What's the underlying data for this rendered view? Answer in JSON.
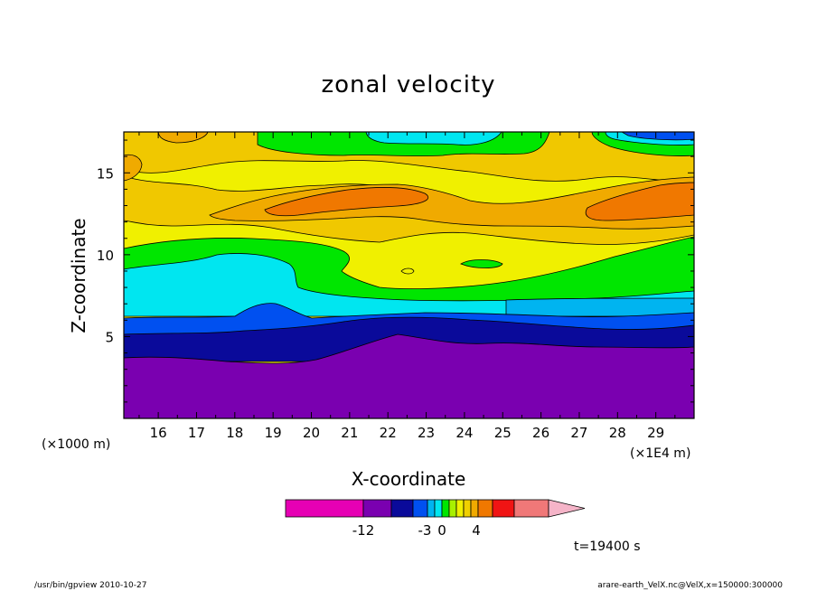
{
  "chart_data": {
    "type": "heatmap",
    "title": "zonal velocity",
    "xlabel": "X-coordinate",
    "ylabel": "Z-coordinate",
    "x_unit_left": "(×1000 m)",
    "x_unit_right": "(×1E4 m)",
    "x_ticks": [
      "16",
      "17",
      "18",
      "19",
      "20",
      "21",
      "22",
      "23",
      "24",
      "25",
      "26",
      "27",
      "28",
      "29"
    ],
    "y_ticks": [
      "5",
      "10",
      "15"
    ],
    "xlim": [
      15.1,
      30.0
    ],
    "ylim": [
      0,
      17.5
    ],
    "time_label": "t=19400 s",
    "legend": {
      "labels": [
        "-12",
        "-3",
        "0",
        "4"
      ],
      "colors": [
        "#e600b4",
        "#7a00b0",
        "#0a0a9a",
        "#0050f0",
        "#00b4f0",
        "#00e6f0",
        "#00e600",
        "#a8f000",
        "#f0f000",
        "#f0d000",
        "#f0aa00",
        "#f07800",
        "#f01414",
        "#f07878",
        "#f5b4c8"
      ]
    },
    "levels_colors": {
      "c_m15": "#7a00b0",
      "c_m12": "#0a0a9a",
      "c_m9": "#0050f0",
      "c_m6": "#00e6f0",
      "c_m3": "#00e600",
      "c_0": "#f0f000",
      "c_2": "#f0c800",
      "c_3": "#f0aa00",
      "c_4": "#f07800"
    },
    "description_regions": [
      {
        "level": "-15 and below",
        "z_range": [
          0,
          4.5
        ]
      },
      {
        "level": "-12",
        "z_range": [
          3.5,
          6.5
        ]
      },
      {
        "level": "-9",
        "z_range": [
          5.5,
          7.5
        ]
      },
      {
        "level": "-6",
        "z_range": [
          7,
          10
        ]
      },
      {
        "level": "-3",
        "z_range": [
          8,
          11
        ]
      },
      {
        "level": "0 to 2",
        "z_range": [
          9,
          17.5
        ]
      },
      {
        "level": "3 to 4",
        "z_range": [
          11.5,
          14.5
        ]
      }
    ]
  },
  "footer": {
    "left": "/usr/bin/gpview   2010-10-27",
    "right": "arare-earth_VelX.nc@VelX,x=150000:300000"
  }
}
